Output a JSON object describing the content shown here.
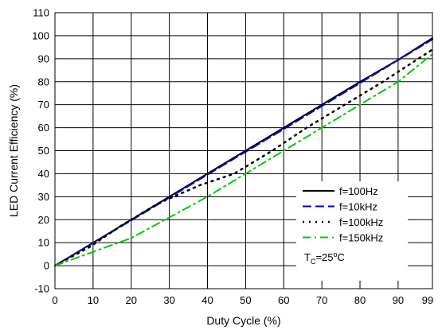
{
  "chart_data": {
    "type": "line",
    "title": "",
    "xlabel": "Duty Cycle (%)",
    "ylabel": "LED Current Efficiency (%)",
    "xlim": [
      0,
      99
    ],
    "ylim": [
      -10,
      110
    ],
    "x_ticks": [
      0,
      10,
      20,
      30,
      40,
      50,
      60,
      70,
      80,
      90,
      99
    ],
    "x_tick_labels": [
      "0",
      "10",
      "20",
      "30",
      "40",
      "50",
      "60",
      "70",
      "80",
      "90",
      "99"
    ],
    "y_ticks": [
      -10,
      0,
      10,
      20,
      30,
      40,
      50,
      60,
      70,
      80,
      90,
      100,
      110
    ],
    "y_tick_labels": [
      "-10",
      "0",
      "10",
      "20",
      "30",
      "40",
      "50",
      "60",
      "70",
      "80",
      "90",
      "100",
      "110"
    ],
    "grid": true,
    "legend_position": "lower-right",
    "annotation": {
      "base": "T",
      "sub": "C",
      "eq": "=25",
      "sup": "o",
      "unit": "C"
    },
    "series": [
      {
        "name": "f=100Hz",
        "color": "#000000",
        "style": "solid",
        "x": [
          0,
          10,
          20,
          30,
          40,
          50,
          60,
          70,
          80,
          90,
          99
        ],
        "y": [
          0,
          10,
          20,
          30,
          40,
          50,
          60,
          70,
          80,
          89.5,
          99
        ]
      },
      {
        "name": "f=10kHz",
        "color": "#0000cc",
        "style": "dash",
        "x": [
          0,
          10,
          20,
          30,
          40,
          50,
          60,
          70,
          80,
          90,
          99
        ],
        "y": [
          0,
          9.8,
          19.7,
          29.6,
          39.6,
          49.5,
          59.4,
          69.4,
          79.4,
          89.4,
          98.4
        ]
      },
      {
        "name": "f=100kHz",
        "color": "#000000",
        "style": "dot",
        "x": [
          0,
          9,
          17,
          27,
          38,
          47,
          57,
          66,
          76,
          86,
          99
        ],
        "y": [
          0,
          8,
          17,
          27,
          35,
          40,
          50,
          60,
          70,
          80,
          94
        ]
      },
      {
        "name": "f=150kHz",
        "color": "#00cc00",
        "style": "dashdot",
        "x": [
          0,
          10,
          20,
          30,
          40,
          50,
          60,
          70,
          80,
          90,
          99
        ],
        "y": [
          0,
          6,
          12,
          21,
          30,
          40,
          50,
          60,
          70,
          80,
          92
        ]
      }
    ]
  }
}
